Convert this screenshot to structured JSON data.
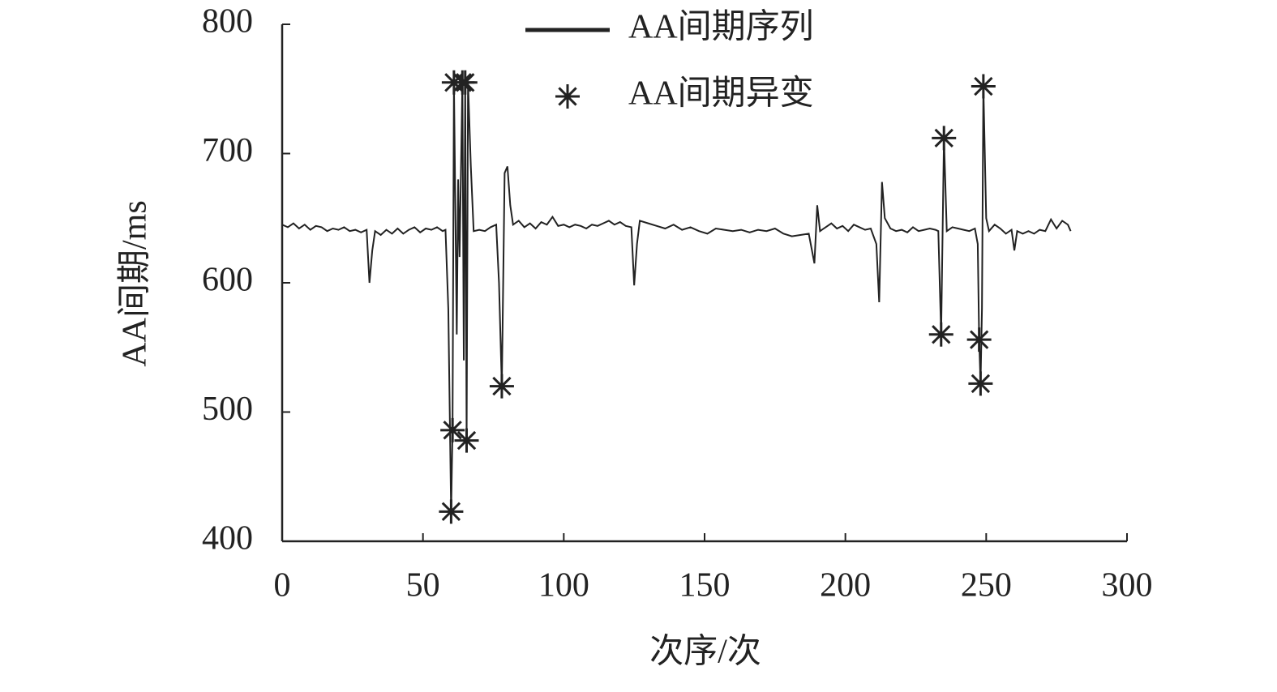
{
  "chart_data": {
    "type": "line",
    "xlabel": "次序/次",
    "ylabel": "AA间期/ms",
    "xlim": [
      0,
      300
    ],
    "xticks": [
      0,
      50,
      100,
      150,
      200,
      250,
      300
    ],
    "ylim": [
      400,
      800
    ],
    "yticks": [
      400,
      500,
      600,
      700,
      800
    ],
    "legend": "top",
    "series": [
      {
        "name": "AA间期序列",
        "color": "#222222",
        "style": "line",
        "x": [
          0,
          2,
          4,
          6,
          8,
          10,
          12,
          14,
          16,
          18,
          20,
          22,
          24,
          26,
          28,
          30,
          31,
          32,
          33,
          35,
          37,
          39,
          41,
          43,
          45,
          47,
          49,
          51,
          53,
          55,
          57,
          58,
          59,
          60,
          60.5,
          61,
          62,
          62.5,
          63,
          64,
          64.5,
          65,
          65.5,
          66,
          67,
          68,
          70,
          72,
          74,
          76,
          77,
          78,
          79,
          80,
          81,
          82,
          84,
          86,
          88,
          90,
          92,
          94,
          96,
          98,
          100,
          102,
          104,
          106,
          108,
          110,
          112,
          114,
          116,
          118,
          120,
          122,
          124,
          125,
          126,
          127,
          130,
          133,
          136,
          139,
          142,
          145,
          148,
          151,
          154,
          157,
          160,
          163,
          166,
          169,
          172,
          175,
          178,
          181,
          184,
          187,
          189,
          190,
          191,
          193,
          195,
          197,
          199,
          201,
          203,
          205,
          207,
          209,
          211,
          212,
          213,
          214,
          216,
          218,
          220,
          222,
          224,
          226,
          228,
          230,
          232,
          233,
          234,
          235,
          236,
          238,
          240,
          242,
          244,
          246,
          247,
          247.5,
          248,
          248.5,
          249,
          250,
          251,
          253,
          255,
          257,
          259,
          260,
          261,
          263,
          265,
          267,
          269,
          271,
          273,
          275,
          277,
          279,
          280
        ],
        "values": [
          645,
          643,
          646,
          642,
          645,
          641,
          644,
          643,
          640,
          642,
          641,
          643,
          640,
          641,
          639,
          641,
          600,
          625,
          640,
          637,
          641,
          638,
          642,
          638,
          641,
          643,
          639,
          642,
          641,
          643,
          640,
          641,
          580,
          423,
          486,
          755,
          560,
          680,
          620,
          755,
          540,
          755,
          478,
          755,
          690,
          640,
          641,
          640,
          643,
          645,
          600,
          520,
          685,
          690,
          660,
          645,
          648,
          643,
          646,
          642,
          647,
          645,
          651,
          644,
          645,
          643,
          645,
          644,
          642,
          645,
          644,
          646,
          648,
          645,
          647,
          644,
          643,
          598,
          630,
          648,
          646,
          644,
          642,
          645,
          641,
          643,
          640,
          638,
          642,
          641,
          640,
          641,
          639,
          641,
          640,
          642,
          638,
          636,
          637,
          638,
          615,
          660,
          640,
          643,
          646,
          642,
          644,
          640,
          645,
          643,
          641,
          642,
          630,
          585,
          678,
          650,
          642,
          640,
          641,
          639,
          643,
          640,
          641,
          642,
          641,
          640,
          560,
          712,
          640,
          643,
          642,
          641,
          640,
          642,
          630,
          556,
          522,
          580,
          752,
          650,
          640,
          645,
          642,
          638,
          641,
          625,
          640,
          638,
          640,
          638,
          641,
          640,
          649,
          642,
          648,
          645,
          640
        ]
      },
      {
        "name": "AA间期异变",
        "color": "#222222",
        "style": "asterisk",
        "x": [
          60,
          60.5,
          61,
          64,
          65,
          65.5,
          78,
          234,
          235,
          247.5,
          248,
          249
        ],
        "values": [
          423,
          486,
          755,
          755,
          755,
          478,
          520,
          560,
          712,
          556,
          522,
          752
        ]
      }
    ]
  }
}
